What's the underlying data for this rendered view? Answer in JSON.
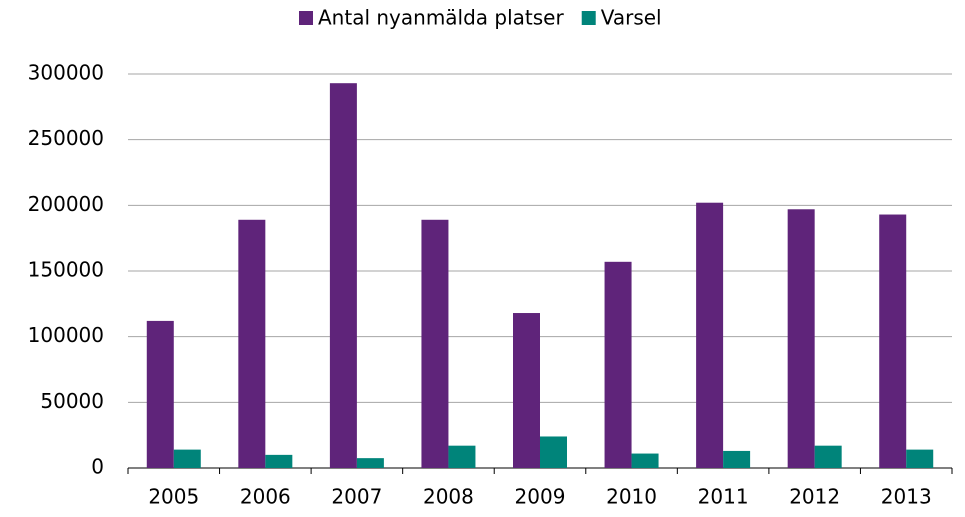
{
  "chart_data": {
    "type": "bar",
    "categories": [
      "2005",
      "2006",
      "2007",
      "2008",
      "2009",
      "2010",
      "2011",
      "2012",
      "2013"
    ],
    "series": [
      {
        "name": "Antal nyanmälda platser",
        "color": "#5f247a",
        "values": [
          112000,
          189000,
          293000,
          189000,
          118000,
          157000,
          202000,
          197000,
          193000
        ]
      },
      {
        "name": "Varsel",
        "color": "#00847a",
        "values": [
          14000,
          10000,
          7500,
          17000,
          24000,
          11000,
          13000,
          17000,
          14000
        ]
      }
    ],
    "ylim": [
      0,
      300000
    ],
    "yticks": [
      0,
      50000,
      100000,
      150000,
      200000,
      250000,
      300000
    ],
    "grid": true,
    "legend": "top"
  }
}
